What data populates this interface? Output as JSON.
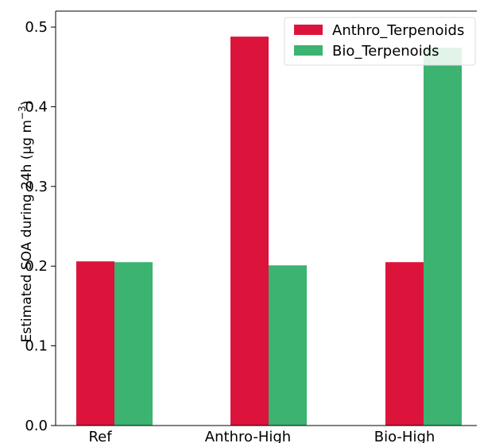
{
  "chart_data": {
    "type": "bar",
    "categories": [
      "Ref",
      "Anthro-High",
      "Bio-High"
    ],
    "series": [
      {
        "name": "Anthro_Terpenoids",
        "values": [
          0.206,
          0.488,
          0.205
        ],
        "color": "#dc143c"
      },
      {
        "name": "Bio_Terpenoids",
        "values": [
          0.205,
          0.201,
          0.474
        ],
        "color": "#3cb371"
      }
    ],
    "ylabel_main": "Estimated SOA during 24h (µg m",
    "ylabel_sup": "−3",
    "ylabel_end": ")",
    "ylim": [
      0,
      0.52
    ],
    "yticks": [
      "0.0",
      "0.1",
      "0.2",
      "0.3",
      "0.4",
      "0.5"
    ],
    "grid": false,
    "legend_position": "top-right"
  }
}
